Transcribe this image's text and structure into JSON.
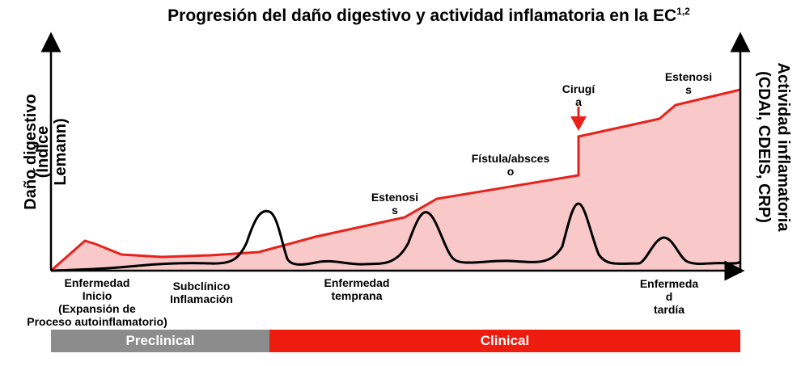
{
  "title": {
    "text": "Progresión del daño digestivo y actividad inflamatoria en la EC",
    "superscript": "1,2"
  },
  "y_axis_left": {
    "line1": "Daño digestivo",
    "line2": "(Índice",
    "line3": "Lemann)"
  },
  "y_axis_right": {
    "line1": "Actividad inflamatoria",
    "line2": "(CDAI, CDEIS, CRP)"
  },
  "annotations": {
    "estenosis_1": {
      "line1": "Estenosi",
      "line2": "s"
    },
    "fistula": {
      "line1": "Fístula/absces",
      "line2": "o"
    },
    "cirugia": {
      "line1": "Cirugí",
      "line2": "a"
    },
    "estenosis_2": {
      "line1": "Estenosi",
      "line2": "s"
    }
  },
  "stages": {
    "inicio": {
      "line1": "Enfermedad",
      "line2": "Inicio",
      "line3": "(Expansión de",
      "line4": "Proceso autoinflamatorio)"
    },
    "subclinico": {
      "line1": "Subclínico",
      "line2": "Inflamación"
    },
    "temprana": {
      "line1": "Enfermedad",
      "line2": "temprana"
    },
    "tardia": {
      "line1": "Enfermeda",
      "line2": "d",
      "line3": "tardía"
    }
  },
  "phases": {
    "preclinical": "Preclinical",
    "clinical": "Clinical"
  },
  "colors": {
    "damage_line": "#e8211b",
    "damage_fill": "#f9c9c9",
    "activity_line": "#000000",
    "preclinical": "#8c8c8c",
    "clinical": "#ee1c0e"
  }
}
